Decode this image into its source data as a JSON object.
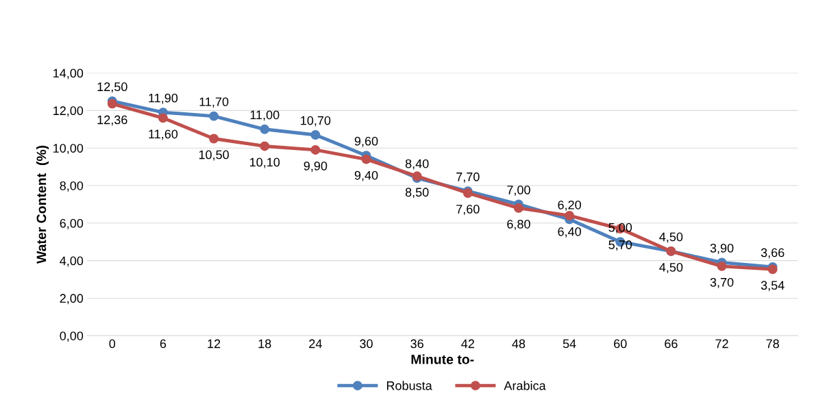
{
  "chart_data": {
    "type": "line",
    "xlabel": "Minute to-",
    "ylabel": "Water Content  (%)",
    "categories": [
      "0",
      "6",
      "12",
      "18",
      "24",
      "30",
      "36",
      "42",
      "48",
      "54",
      "60",
      "66",
      "72",
      "78"
    ],
    "series": [
      {
        "name": "Robusta",
        "color": "#4f81bd",
        "values": [
          12.5,
          11.9,
          11.7,
          11.0,
          10.7,
          9.6,
          8.4,
          7.7,
          7.0,
          6.2,
          5.0,
          4.5,
          3.9,
          3.66
        ],
        "value_labels": [
          "12,50",
          "11,90",
          "11,70",
          "11,00",
          "10,70",
          "9,60",
          "8,40",
          "7,70",
          "7,00",
          "6,20",
          "5,00",
          "4,50",
          "3,90",
          "3,66"
        ]
      },
      {
        "name": "Arabica",
        "color": "#c0504d",
        "values": [
          12.36,
          11.6,
          10.5,
          10.1,
          9.9,
          9.4,
          8.5,
          7.6,
          6.8,
          6.4,
          5.7,
          4.5,
          3.7,
          3.54
        ],
        "value_labels": [
          "12,36",
          "11,60",
          "10,50",
          "10,10",
          "9,90",
          "9,40",
          "8,50",
          "7,60",
          "6,80",
          "6,40",
          "5,70",
          "4,50",
          "3,70",
          "3,54"
        ]
      }
    ],
    "ylim": [
      0,
      14
    ],
    "yticks": [
      {
        "value": 0,
        "label": "0,00"
      },
      {
        "value": 2,
        "label": "2,00"
      },
      {
        "value": 4,
        "label": "4,00"
      },
      {
        "value": 6,
        "label": "6,00"
      },
      {
        "value": 8,
        "label": "8,00"
      },
      {
        "value": 10,
        "label": "10,00"
      },
      {
        "value": 12,
        "label": "12,00"
      },
      {
        "value": 14,
        "label": "14,00"
      }
    ],
    "grid": "y",
    "legend": "bottom",
    "marker": "circle",
    "line_style": "solid"
  }
}
